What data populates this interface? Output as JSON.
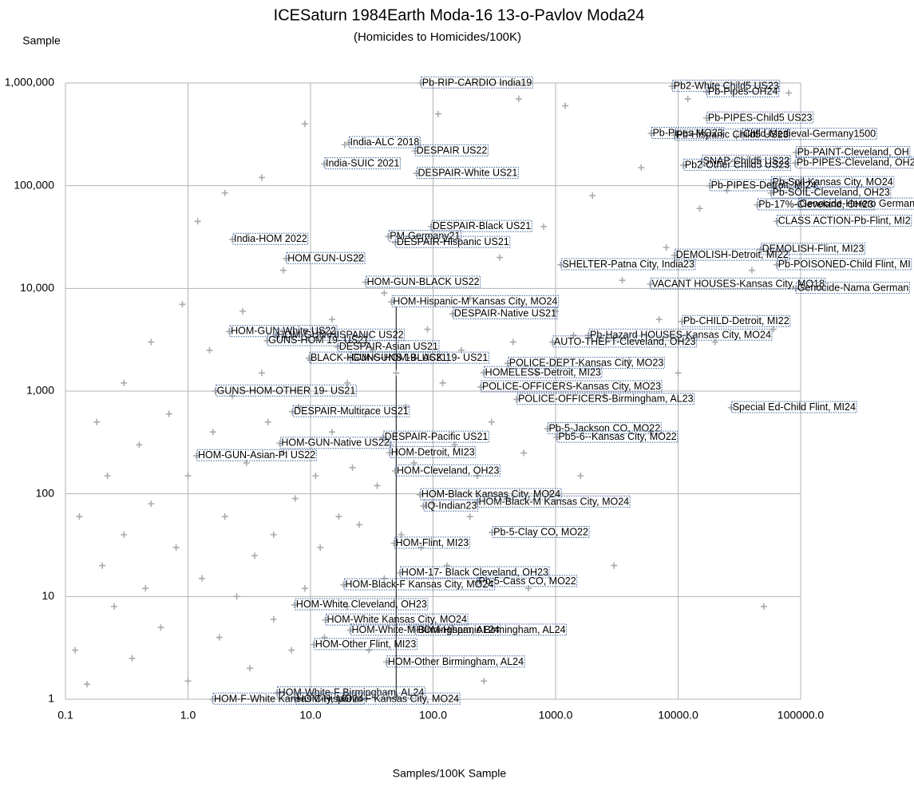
{
  "chart_data": {
    "type": "scatter",
    "title": "ICESaturn 1984Earth Moda-16 13-o-Pavlov Moda24",
    "subtitle": "(Homicides to Homicides/100K)",
    "y_label": "Sample",
    "x_label": "Samples/100K Sample",
    "x_scale": "log",
    "y_scale": "log",
    "grid": true,
    "xlim": [
      0.1,
      100000
    ],
    "ylim": [
      1,
      1000000
    ],
    "xticks": [
      0.1,
      {
        "value": 1,
        "label": "1.0"
      },
      {
        "value": 10,
        "label": "10.0"
      },
      {
        "value": 100,
        "label": "100.0"
      },
      {
        "value": 1000,
        "label": "1000.0"
      },
      {
        "value": 10000,
        "label": "10000.0"
      },
      {
        "value": 100000,
        "label": "100000.0"
      }
    ],
    "yticks": [
      1,
      10,
      100,
      {
        "value": 1000,
        "label": "1,000"
      },
      {
        "value": 10000,
        "label": "10,000"
      },
      {
        "value": 100000,
        "label": "100,000"
      },
      {
        "value": 1000000,
        "label": "1,000,000"
      }
    ],
    "reference_line": {
      "x": 50,
      "y": [
        1,
        6600
      ],
      "color": "#000000"
    },
    "series": [
      {
        "color": "#aaaaaa",
        "x": [
          0.12,
          0.13,
          0.15,
          0.18,
          0.2,
          0.22,
          0.25,
          0.3,
          0.3,
          0.35,
          0.4,
          0.45,
          0.5,
          0.5,
          0.6,
          0.7,
          0.8,
          0.9,
          1,
          1,
          1.2,
          1.3,
          1.5,
          1.6,
          1.8,
          2,
          2,
          2.3,
          2.5,
          2.8,
          3,
          3.2,
          3.5,
          4,
          4,
          4.5,
          5,
          5,
          6,
          6,
          7,
          7.5,
          8,
          9,
          9,
          10,
          11,
          12,
          13,
          15,
          15,
          17,
          19,
          20,
          20,
          22,
          25,
          25,
          28,
          30,
          32,
          35,
          40,
          40,
          45,
          50,
          55,
          60,
          65,
          70,
          80,
          90,
          100,
          110,
          120,
          130,
          150,
          170,
          200,
          200,
          230,
          260,
          300,
          350,
          400,
          450,
          500,
          550,
          600,
          700,
          800,
          900,
          1000,
          1200,
          1400,
          1600,
          2000,
          2500,
          3000,
          3500,
          4000,
          5000,
          6000,
          7000,
          8000,
          10000,
          12000,
          15000,
          20000,
          25000,
          30000,
          40000,
          50000,
          60000,
          80000
        ],
        "y": [
          3,
          60,
          1.4,
          500,
          20,
          150,
          8,
          1200,
          40,
          2.5,
          300,
          12,
          3000,
          80,
          5,
          600,
          30,
          7000,
          1.5,
          150,
          45000,
          15,
          2500,
          400,
          4,
          60,
          85000,
          900,
          10,
          6000,
          200,
          2,
          25,
          1500,
          120000,
          500,
          6,
          40,
          15000,
          250,
          3,
          90,
          700,
          400000,
          12,
          2000,
          150,
          30,
          4,
          5000,
          400,
          60,
          250000,
          8,
          1200,
          180,
          20000,
          50,
          600,
          3,
          2500,
          120,
          15,
          9000,
          300,
          1500,
          40,
          700,
          5,
          200,
          30,
          4000,
          80,
          500000,
          1200,
          20,
          300,
          2500,
          8000,
          60,
          150,
          1.5,
          500,
          20000,
          90,
          3000,
          700000,
          250,
          12,
          1500,
          40000,
          100,
          6000,
          600000,
          3500,
          150,
          80000,
          900,
          20,
          12000,
          2000,
          150000,
          400,
          5000,
          25000,
          1500,
          700000,
          60000,
          3000,
          90000,
          300000,
          15000,
          8,
          4000,
          800000
        ]
      },
      {
        "color": "#aaaaaa",
        "label_border": "#3a5f9a",
        "labels": [
          "Pb-RIP-CARDIO India19",
          "Pb2-White Child5 US23",
          "Pb-Pipes-OH24",
          "Pb-PIPES-Child5 US23",
          "Pb-Pipes MO23",
          "Pb-Hispanic Child5 US23",
          "Child-Medieval-Germany1500",
          "Pb-PAINT-Cleveland, OH",
          "Pb-PIPES-Cleveland, OH24",
          "SNAP-Child5 US22",
          "Pb2-Other Child5 US23",
          "India-ALC 2018",
          "DESPAIR US22",
          "India-SUIC 2021",
          "DESPAIR-White US21",
          "Pb-Soil-Kansas City, MO24",
          "Pb-PIPES-Detroit, MI24",
          "Pb-SOIL-Cleveland, OH23",
          "Pb-17%-Cleveland, OH23",
          "Genocide-Herero German",
          "CLASS ACTION-Pb-Flint, MI2",
          "DESPAIR-Black US21",
          "PM-Germany21",
          "India-HOM 2022",
          "DESPAIR-Hispanic US21",
          "DEMOLISH-Flint, MI23",
          "DEMOLISH-Detroit, MI22",
          "HOM GUN-US22",
          "SHELTER-Patna City, India23",
          "Pb-POISONED-Child Flint, MI",
          "HOM-GUN-BLACK US22",
          "VACANT HOUSES-Kansas City, MO18",
          "Genocide-Nama German",
          "HOM-Hispanic-M Kansas City, MO24",
          "DESPAIR-Native US21",
          "Pb-CHILD-Detroit, MI22",
          "HOM-GUN-White US22",
          "HOM-GUN-HISPANIC US22",
          "Pb-Hazard HOUSES-Kansas City, MO24",
          "GUNS-HOM 19- US21",
          "AUTO-THEFT-Cleveland, OH23",
          "DESPAIR-Asian US21",
          "BLACK-HOM-GUNS 19- US21",
          "GUNS-HOM-BLACK 19- US21",
          "POLICE-DEPT-Kansas City, MO23",
          "HOMELESS-Detroit, MI23",
          "POLICE-OFFICERS-Kansas City, MO23",
          "GUNS-HOM-OTHER 19- US21",
          "POLICE-OFFICERS-Birmingham, AL23",
          "Special Ed-Child Flint, MI24",
          "DESPAIR-Multirace US21",
          "Pb-5-Jackson CO, MO22",
          "DESPAIR-Pacific US21",
          "Pb5-6--Kansas City, MO22",
          "HOM-GUN-Native US22",
          "HOM-GUN-Asian-PI US22",
          "HOM-Detroit, MI23",
          "HOM-Cleveland, OH23",
          "HOM-Black Kansas City, MO24",
          "HOM-Black-M Kansas City, MO24",
          "IQ-Indian23",
          "Pb-5-Clay CO, MO22",
          "HOM-Flint, MI23",
          "HOM-17- Black Cleveland, OH23",
          "Pb-5-Cass CO, MO22",
          "HOM-Black-F Kansas City, MO24",
          "HOM-White Cleveland, OH23",
          "HOM-White Kansas City, MO24",
          "HOM-White-M Birmingham, AL24",
          "HOM-Hispanic Birmingham, AL24",
          "HOM-Other Flint, MI23",
          "HOM-Other Birmingham, AL24",
          "HOM-White-F Birmingham, AL24",
          "HOM-F-White Kansas City, MO24",
          "HOM-Hispanic-F Kansas City, MO24"
        ],
        "x": [
          79,
          8900,
          17000,
          17000,
          6000,
          9300,
          33000,
          91000,
          90000,
          15500,
          11000,
          20.4,
          71,
          12.9,
          73,
          57000,
          18000,
          57000,
          44000,
          95000,
          63500,
          96,
          43,
          2.3,
          49,
          47000,
          9300,
          6.3,
          1100,
          63500,
          28,
          5900,
          91000,
          45.7,
          144,
          10700,
          2.17,
          5.2,
          1850,
          4.4,
          940,
          16.6,
          9.7,
          21,
          405,
          258,
          244,
          1.67,
          480,
          27000,
          7.1,
          855,
          39,
          1020,
          5.6,
          1.17,
          44,
          49,
          78,
          228,
          83,
          302,
          48,
          53.5,
          228,
          18.6,
          7.4,
          13.2,
          21,
          71,
          10.6,
          41.5,
          5.3,
          1.58,
          7.5
        ],
        "y": [
          1000000,
          930000,
          820000,
          455000,
          323000,
          310000,
          316000,
          210000,
          166000,
          173000,
          158000,
          262000,
          218000,
          163000,
          132000,
          107000,
          100000,
          85000,
          65000,
          66000,
          45000,
          40000,
          32000,
          30000,
          28000,
          24000,
          21000,
          19500,
          17000,
          17000,
          11500,
          11000,
          10000,
          7400,
          5650,
          4750,
          3800,
          3500,
          3500,
          3100,
          3000,
          2700,
          2090,
          2090,
          1860,
          1510,
          1100,
          1000,
          830,
          690,
          630,
          430,
          355,
          355,
          310,
          235,
          251,
          167,
          98,
          83,
          76,
          42,
          33,
          17,
          14,
          13,
          8.3,
          5.9,
          4.7,
          4.7,
          3.4,
          2.3,
          1.15,
          1,
          1
        ]
      }
    ]
  }
}
